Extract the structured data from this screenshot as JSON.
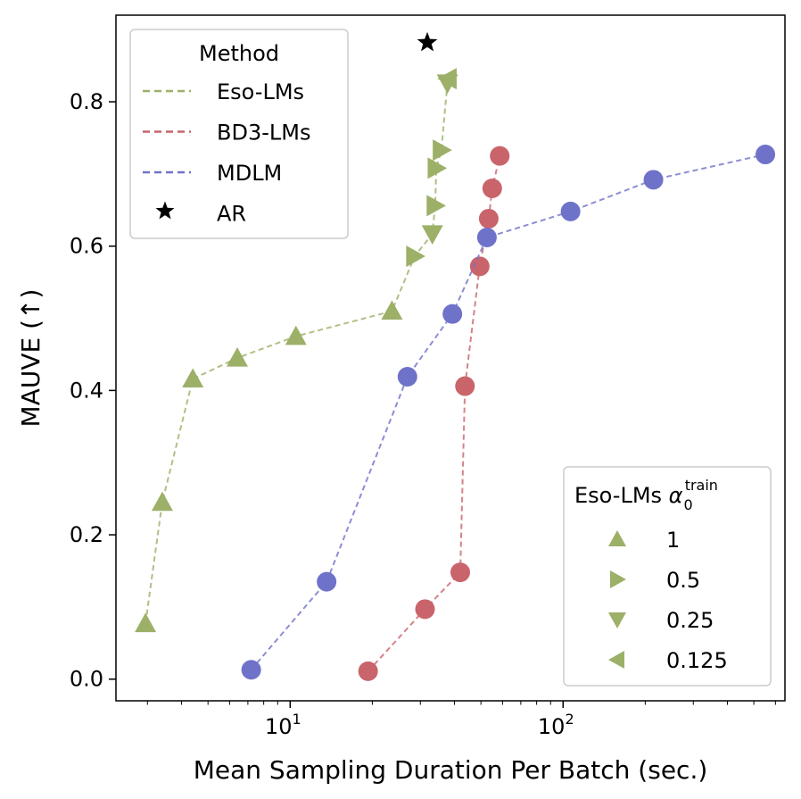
{
  "chart_data": {
    "type": "scatter",
    "xlabel": "Mean Sampling Duration Per Batch (sec.)",
    "ylabel": "MAUVE (↑)",
    "xscale": "log",
    "xlim": [
      2.3,
      650
    ],
    "ylim": [
      -0.03,
      0.92
    ],
    "x_ticks": [
      {
        "value": 10,
        "base": "10",
        "exp": "1"
      },
      {
        "value": 100,
        "base": "10",
        "exp": "2"
      }
    ],
    "y_ticks": [
      {
        "value": 0.0,
        "label": "0.0"
      },
      {
        "value": 0.2,
        "label": "0.2"
      },
      {
        "value": 0.4,
        "label": "0.4"
      },
      {
        "value": 0.6,
        "label": "0.6"
      },
      {
        "value": 0.8,
        "label": "0.8"
      }
    ],
    "series": [
      {
        "name": "Eso-LMs",
        "color": "#9cb068",
        "points": [
          {
            "x": 2.95,
            "y": 0.077,
            "alpha": "1"
          },
          {
            "x": 3.4,
            "y": 0.245,
            "alpha": "1"
          },
          {
            "x": 4.4,
            "y": 0.416,
            "alpha": "1"
          },
          {
            "x": 6.4,
            "y": 0.445,
            "alpha": "1"
          },
          {
            "x": 10.5,
            "y": 0.475,
            "alpha": "1"
          },
          {
            "x": 23.6,
            "y": 0.51,
            "alpha": "1"
          },
          {
            "x": 28.6,
            "y": 0.586,
            "alpha": "0.5"
          },
          {
            "x": 33.2,
            "y": 0.617,
            "alpha": "0.25"
          },
          {
            "x": 34.0,
            "y": 0.656,
            "alpha": "0.5"
          },
          {
            "x": 34.3,
            "y": 0.708,
            "alpha": "0.5"
          },
          {
            "x": 35.8,
            "y": 0.733,
            "alpha": "0.5"
          },
          {
            "x": 37.7,
            "y": 0.826,
            "alpha": "0.25"
          },
          {
            "x": 37.9,
            "y": 0.832,
            "alpha": "0.125"
          }
        ]
      },
      {
        "name": "BD3-LMs",
        "color": "#c9646b",
        "points": [
          {
            "x": 19.3,
            "y": 0.011
          },
          {
            "x": 31.2,
            "y": 0.097
          },
          {
            "x": 42.0,
            "y": 0.148
          },
          {
            "x": 43.7,
            "y": 0.406
          },
          {
            "x": 49.5,
            "y": 0.572
          },
          {
            "x": 53.4,
            "y": 0.638
          },
          {
            "x": 55.0,
            "y": 0.68
          },
          {
            "x": 58.6,
            "y": 0.725
          }
        ]
      },
      {
        "name": "MDLM",
        "color": "#6f72c9",
        "points": [
          {
            "x": 7.2,
            "y": 0.013
          },
          {
            "x": 13.6,
            "y": 0.135
          },
          {
            "x": 26.9,
            "y": 0.419
          },
          {
            "x": 39.3,
            "y": 0.506
          },
          {
            "x": 52.6,
            "y": 0.612
          },
          {
            "x": 106.5,
            "y": 0.648
          },
          {
            "x": 214.3,
            "y": 0.692
          },
          {
            "x": 551.0,
            "y": 0.727
          }
        ]
      },
      {
        "name": "AR",
        "color": "#000000",
        "points": [
          {
            "x": 31.8,
            "y": 0.882
          }
        ]
      }
    ],
    "legend_method": {
      "title": "Method",
      "placement": "top-left",
      "entries": [
        "Eso-LMs",
        "BD3-LMs",
        "MDLM",
        "AR"
      ]
    },
    "legend_alpha": {
      "title_main": "Eso-LMs ",
      "title_symbol": "α",
      "title_sub": "0",
      "title_sup": "train",
      "placement": "bottom-right",
      "entries": [
        "1",
        "0.5",
        "0.25",
        "0.125"
      ]
    }
  }
}
